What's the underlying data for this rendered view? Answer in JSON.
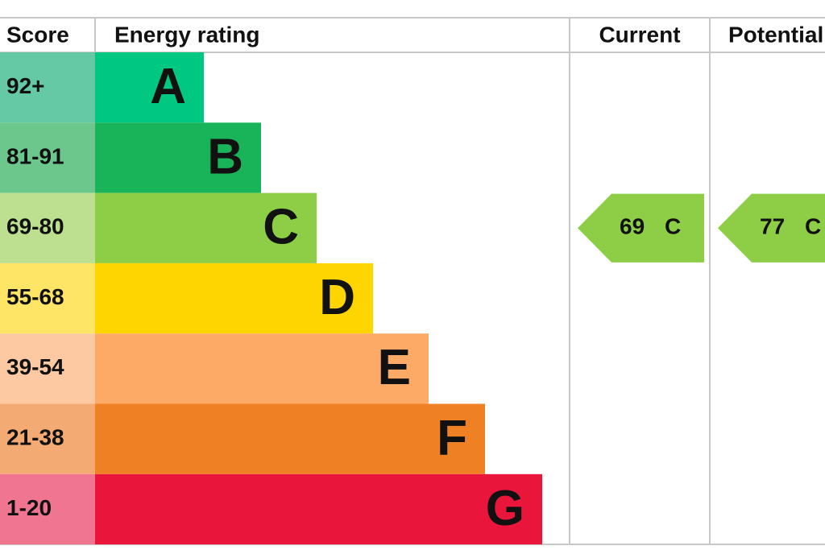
{
  "header": {
    "score": "Score",
    "rating": "Energy rating",
    "current": "Current",
    "potential": "Potential"
  },
  "rows": [
    {
      "score": "92+",
      "letter": "A",
      "color": "#00c781",
      "score_color": "#66c9a6"
    },
    {
      "score": "81-91",
      "letter": "B",
      "color": "#19b459",
      "score_color": "#6cc78d"
    },
    {
      "score": "69-80",
      "letter": "C",
      "color": "#8dce46",
      "score_color": "#bce090"
    },
    {
      "score": "55-68",
      "letter": "D",
      "color": "#ffd500",
      "score_color": "#ffe566"
    },
    {
      "score": "39-54",
      "letter": "E",
      "color": "#fcaa65",
      "score_color": "#fdc9a3"
    },
    {
      "score": "21-38",
      "letter": "F",
      "color": "#ef8023",
      "score_color": "#f3ab73"
    },
    {
      "score": "1-20",
      "letter": "G",
      "color": "#e9153b",
      "score_color": "#f07590"
    }
  ],
  "current": {
    "value": 69,
    "band": "C"
  },
  "potential": {
    "value": 77,
    "band": "C"
  }
}
